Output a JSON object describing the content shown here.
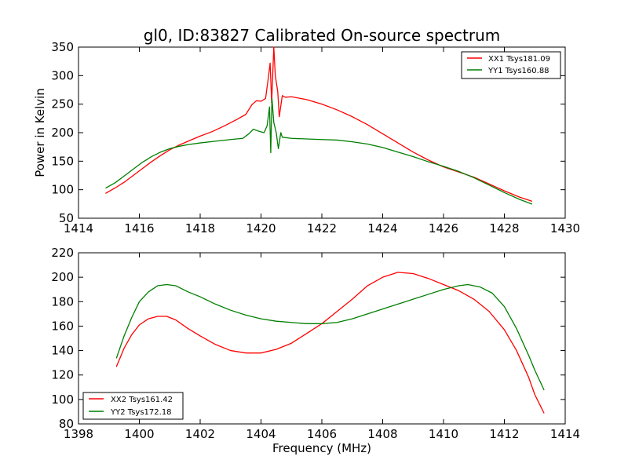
{
  "chart_data": [
    {
      "type": "line",
      "title": "gl0, ID:83827 Calibrated On-source spectrum",
      "xlabel": "",
      "ylabel": "Power in Kelvin",
      "xlim": [
        1414,
        1430
      ],
      "ylim": [
        50,
        350
      ],
      "xticks": [
        1414,
        1416,
        1418,
        1420,
        1422,
        1424,
        1426,
        1428,
        1430
      ],
      "yticks": [
        50,
        100,
        150,
        200,
        250,
        300,
        350
      ],
      "legend_position": "top-right",
      "grid": false,
      "series": [
        {
          "name": "XX1 Tsys181.09",
          "color": "#ff0000",
          "points": [
            [
              1414.9,
              94
            ],
            [
              1415.2,
              103
            ],
            [
              1415.5,
              113
            ],
            [
              1415.8,
              125
            ],
            [
              1416.1,
              137
            ],
            [
              1416.4,
              149
            ],
            [
              1416.7,
              160
            ],
            [
              1417.0,
              170
            ],
            [
              1417.3,
              178
            ],
            [
              1417.6,
              185
            ],
            [
              1418.0,
              194
            ],
            [
              1418.4,
              202
            ],
            [
              1418.8,
              212
            ],
            [
              1419.2,
              223
            ],
            [
              1419.5,
              232
            ],
            [
              1419.7,
              249
            ],
            [
              1419.85,
              256
            ],
            [
              1420.0,
              255
            ],
            [
              1420.15,
              260
            ],
            [
              1420.25,
              300
            ],
            [
              1420.3,
              322
            ],
            [
              1420.35,
              252
            ],
            [
              1420.42,
              350
            ],
            [
              1420.47,
              300
            ],
            [
              1420.55,
              272
            ],
            [
              1420.6,
              228
            ],
            [
              1420.7,
              265
            ],
            [
              1420.8,
              262
            ],
            [
              1421.0,
              263
            ],
            [
              1421.5,
              258
            ],
            [
              1422.0,
              250
            ],
            [
              1422.5,
              240
            ],
            [
              1423.0,
              228
            ],
            [
              1423.5,
              214
            ],
            [
              1424.0,
              198
            ],
            [
              1424.5,
              182
            ],
            [
              1425.0,
              166
            ],
            [
              1425.5,
              152
            ],
            [
              1426.0,
              140
            ],
            [
              1426.5,
              131
            ],
            [
              1427.0,
              122
            ],
            [
              1427.5,
              110
            ],
            [
              1428.0,
              98
            ],
            [
              1428.5,
              87
            ],
            [
              1428.9,
              80
            ]
          ]
        },
        {
          "name": "YY1 Tsys160.88",
          "color": "#007f00",
          "points": [
            [
              1414.9,
              103
            ],
            [
              1415.2,
              112
            ],
            [
              1415.5,
              124
            ],
            [
              1415.8,
              136
            ],
            [
              1416.1,
              148
            ],
            [
              1416.4,
              158
            ],
            [
              1416.7,
              166
            ],
            [
              1417.0,
              172
            ],
            [
              1417.3,
              176
            ],
            [
              1417.6,
              179
            ],
            [
              1418.0,
              182
            ],
            [
              1418.5,
              185
            ],
            [
              1419.0,
              188
            ],
            [
              1419.4,
              190
            ],
            [
              1419.6,
              198
            ],
            [
              1419.75,
              206
            ],
            [
              1419.9,
              203
            ],
            [
              1420.1,
              200
            ],
            [
              1420.2,
              212
            ],
            [
              1420.28,
              245
            ],
            [
              1420.32,
              165
            ],
            [
              1420.36,
              260
            ],
            [
              1420.42,
              218
            ],
            [
              1420.5,
              200
            ],
            [
              1420.57,
              172
            ],
            [
              1420.65,
              200
            ],
            [
              1420.7,
              192
            ],
            [
              1421.0,
              190
            ],
            [
              1421.5,
              189
            ],
            [
              1422.0,
              188
            ],
            [
              1422.5,
              187
            ],
            [
              1423.0,
              184
            ],
            [
              1423.5,
              180
            ],
            [
              1424.0,
              174
            ],
            [
              1424.5,
              166
            ],
            [
              1425.0,
              158
            ],
            [
              1425.5,
              149
            ],
            [
              1426.0,
              141
            ],
            [
              1426.5,
              132
            ],
            [
              1427.0,
              121
            ],
            [
              1427.5,
              108
            ],
            [
              1428.0,
              95
            ],
            [
              1428.5,
              83
            ],
            [
              1428.9,
              75
            ]
          ]
        }
      ]
    },
    {
      "type": "line",
      "title": "",
      "xlabel": "Frequency (MHz)",
      "ylabel": "",
      "xlim": [
        1398,
        1414
      ],
      "ylim": [
        80,
        220
      ],
      "xticks": [
        1398,
        1400,
        1402,
        1404,
        1406,
        1408,
        1410,
        1412,
        1414
      ],
      "yticks": [
        80,
        100,
        120,
        140,
        160,
        180,
        200,
        220
      ],
      "legend_position": "bottom-left",
      "grid": false,
      "series": [
        {
          "name": "XX2 Tsys161.42",
          "color": "#ff0000",
          "points": [
            [
              1399.25,
              127
            ],
            [
              1399.5,
              142
            ],
            [
              1399.75,
              153
            ],
            [
              1400.0,
              161
            ],
            [
              1400.3,
              166
            ],
            [
              1400.6,
              168
            ],
            [
              1400.9,
              168
            ],
            [
              1401.2,
              165
            ],
            [
              1401.6,
              158
            ],
            [
              1402.0,
              152
            ],
            [
              1402.5,
              145
            ],
            [
              1403.0,
              140
            ],
            [
              1403.5,
              138
            ],
            [
              1404.0,
              138
            ],
            [
              1404.5,
              141
            ],
            [
              1405.0,
              146
            ],
            [
              1405.5,
              154
            ],
            [
              1406.0,
              162
            ],
            [
              1406.5,
              172
            ],
            [
              1407.0,
              182
            ],
            [
              1407.5,
              193
            ],
            [
              1408.0,
              200
            ],
            [
              1408.5,
              204
            ],
            [
              1409.0,
              203
            ],
            [
              1409.5,
              199
            ],
            [
              1410.0,
              194
            ],
            [
              1410.5,
              189
            ],
            [
              1411.0,
              182
            ],
            [
              1411.5,
              172
            ],
            [
              1412.0,
              157
            ],
            [
              1412.4,
              140
            ],
            [
              1412.8,
              118
            ],
            [
              1413.0,
              104
            ],
            [
              1413.3,
              89
            ]
          ]
        },
        {
          "name": "YY2 Tsys172.18",
          "color": "#007f00",
          "points": [
            [
              1399.25,
              134
            ],
            [
              1399.5,
              152
            ],
            [
              1399.75,
              167
            ],
            [
              1400.0,
              180
            ],
            [
              1400.3,
              188
            ],
            [
              1400.6,
              193
            ],
            [
              1400.9,
              194
            ],
            [
              1401.2,
              193
            ],
            [
              1401.6,
              188
            ],
            [
              1402.0,
              184
            ],
            [
              1402.5,
              178
            ],
            [
              1403.0,
              173
            ],
            [
              1403.5,
              169
            ],
            [
              1404.0,
              166
            ],
            [
              1404.5,
              164
            ],
            [
              1405.0,
              163
            ],
            [
              1405.5,
              162
            ],
            [
              1406.0,
              162
            ],
            [
              1406.5,
              163
            ],
            [
              1407.0,
              166
            ],
            [
              1407.5,
              170
            ],
            [
              1408.0,
              174
            ],
            [
              1408.5,
              178
            ],
            [
              1409.0,
              182
            ],
            [
              1409.5,
              186
            ],
            [
              1410.0,
              190
            ],
            [
              1410.5,
              193
            ],
            [
              1410.8,
              194
            ],
            [
              1411.2,
              192
            ],
            [
              1411.6,
              187
            ],
            [
              1412.0,
              176
            ],
            [
              1412.4,
              158
            ],
            [
              1412.8,
              136
            ],
            [
              1413.0,
              124
            ],
            [
              1413.3,
              108
            ]
          ]
        }
      ]
    }
  ]
}
